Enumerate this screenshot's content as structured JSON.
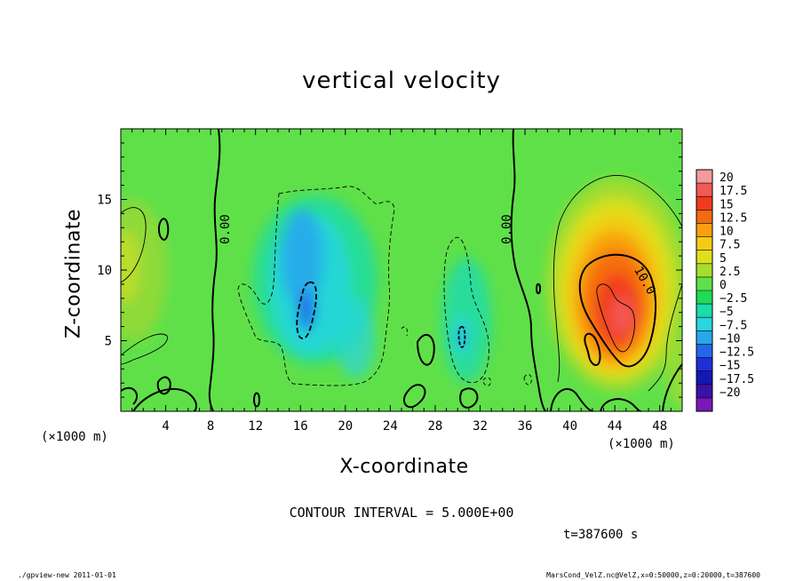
{
  "chart_data": {
    "type": "heatmap",
    "title": "vertical velocity",
    "xlabel": "X-coordinate",
    "ylabel": "Z-coordinate",
    "x_unit_label": "(×1000 m)",
    "xlim": [
      0,
      50
    ],
    "ylim": [
      0,
      20
    ],
    "x_ticks": [
      "4",
      "8",
      "12",
      "16",
      "20",
      "24",
      "28",
      "32",
      "36",
      "40",
      "44",
      "48"
    ],
    "y_ticks": [
      "5",
      "10",
      "15"
    ],
    "colorbar": {
      "labels": [
        "20",
        "17.5",
        "15",
        "12.5",
        "10",
        "7.5",
        "5",
        "2.5",
        "0",
        "-2.5",
        "-5",
        "-7.5",
        "-10",
        "-12.5",
        "-15",
        "-17.5",
        "-20"
      ],
      "colors": [
        "#f39a9a",
        "#f25a55",
        "#f03a20",
        "#f46a10",
        "#f9a010",
        "#f4cc14",
        "#dfe01c",
        "#a8dc2c",
        "#5fe049",
        "#1fdb58",
        "#1cdca8",
        "#26d6e0",
        "#27a8ec",
        "#2366ec",
        "#1d30d8",
        "#1516b4",
        "#3a12a8",
        "#7a18b8"
      ]
    },
    "contour_labels": [
      "0.00",
      "0.00",
      "10.0"
    ],
    "features": [
      {
        "name": "updraft",
        "x": 43.5,
        "z": 7.5,
        "value": 17.5
      },
      {
        "name": "downdraft",
        "x": 17,
        "z": 8,
        "value": -10
      },
      {
        "name": "downdraft",
        "x": 30.5,
        "z": 5.5,
        "value": -8
      }
    ]
  },
  "contour_interval": "CONTOUR INTERVAL = 5.000E+00",
  "time": "t=387600 s",
  "footer_left": "./gpview-new  2011-01-01",
  "footer_right": "MarsCond_VelZ.nc@VelZ,x=0:50000,z=0:20000,t=387600"
}
